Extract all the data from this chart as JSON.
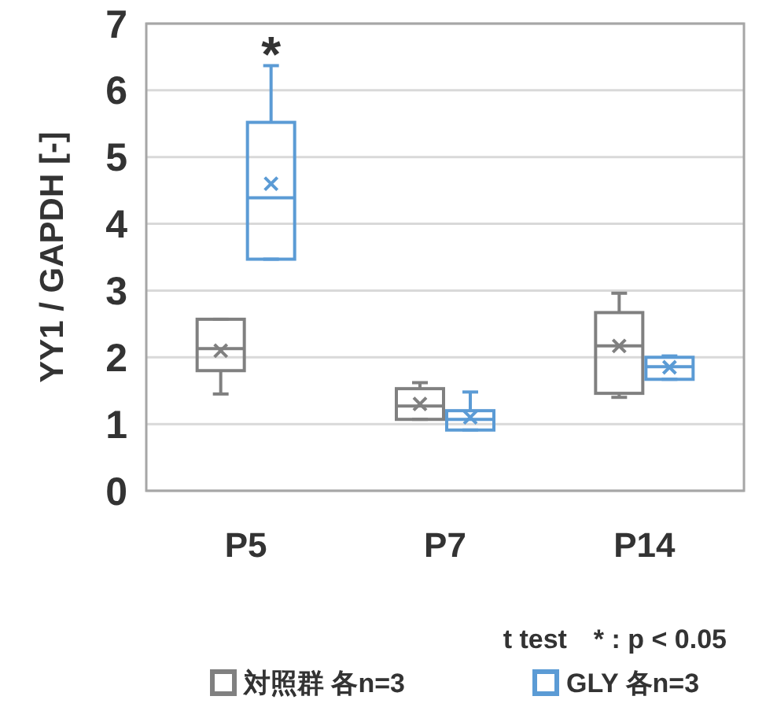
{
  "chart_data": {
    "type": "box",
    "ylabel": "YY1 / GAPDH [-]",
    "categories": [
      "P5",
      "P7",
      "P14"
    ],
    "ylim": [
      0,
      7
    ],
    "yticks": [
      0,
      1,
      2,
      3,
      4,
      5,
      6,
      7
    ],
    "grid": "y",
    "legend": "bottom",
    "series": [
      {
        "name": "対照群 各n=3",
        "color": "#808080",
        "boxes": [
          {
            "low": 1.45,
            "q1": 1.8,
            "median": 2.13,
            "q3": 2.57,
            "high": 2.57,
            "mean": 2.1
          },
          {
            "low": 1.07,
            "q1": 1.07,
            "median": 1.27,
            "q3": 1.53,
            "high": 1.62,
            "mean": 1.3
          },
          {
            "low": 1.4,
            "q1": 1.46,
            "median": 2.17,
            "q3": 2.67,
            "high": 2.96,
            "mean": 2.17
          }
        ]
      },
      {
        "name": "GLY 各n=3",
        "color": "#5b9bd5",
        "boxes": [
          {
            "low": 3.47,
            "q1": 3.47,
            "median": 4.39,
            "q3": 5.52,
            "high": 6.37,
            "mean": 4.6
          },
          {
            "low": 0.91,
            "q1": 0.91,
            "median": 1.07,
            "q3": 1.2,
            "high": 1.48,
            "mean": 1.1
          },
          {
            "low": 1.67,
            "q1": 1.67,
            "median": 1.86,
            "q3": 2.0,
            "high": 2.02,
            "mean": 1.85
          }
        ]
      }
    ],
    "annotations": [
      "*",
      "t test　* : p < 0.05"
    ]
  }
}
